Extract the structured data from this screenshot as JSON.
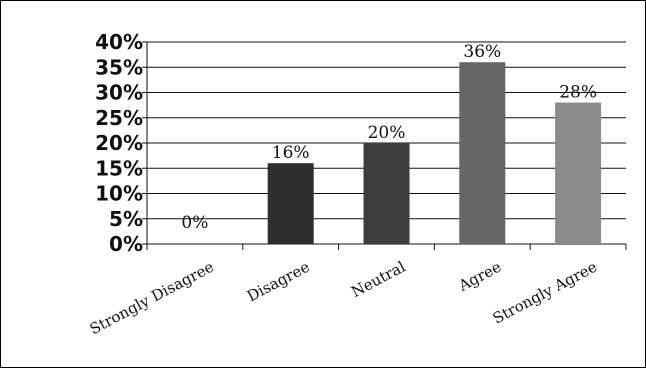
{
  "chart_data": {
    "type": "bar",
    "categories": [
      "Strongly Disagree",
      "Disagree",
      "Neutral",
      "Agree",
      "Strongly Agree"
    ],
    "values": [
      0,
      16,
      20,
      36,
      28
    ],
    "data_labels": [
      "0%",
      "16%",
      "20%",
      "36%",
      "28%"
    ],
    "bar_colors": [
      "#2a2a2a",
      "#2e2e2e",
      "#3d3d3d",
      "#666666",
      "#8a8a8a"
    ],
    "ylim": [
      0,
      40
    ],
    "yticks": [
      "0%",
      "5%",
      "10%",
      "15%",
      "20%",
      "25%",
      "30%",
      "35%",
      "40%"
    ],
    "title": "",
    "xlabel": "",
    "ylabel": "",
    "grid": true,
    "legend": "none"
  }
}
